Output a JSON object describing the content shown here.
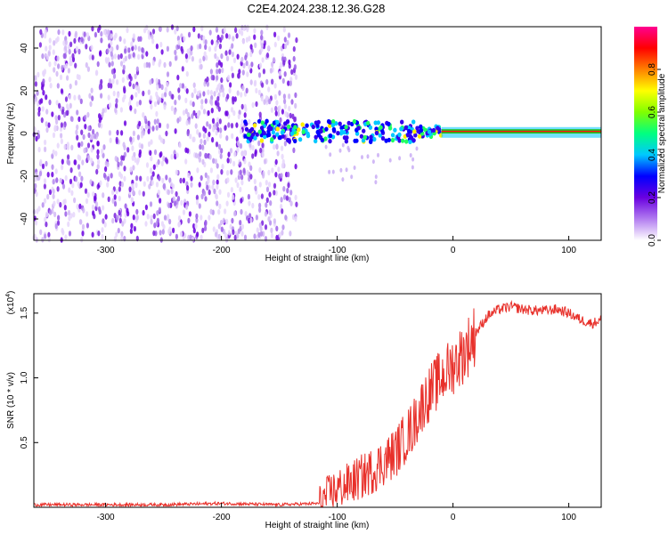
{
  "title": "C2E4.2024.238.12.36.G28",
  "chart_data": [
    {
      "type": "heatmap",
      "xlabel": "Height of straight line (km)",
      "ylabel": "Frequency (Hz)",
      "xlim": [
        -362,
        128
      ],
      "ylim": [
        -50,
        50
      ],
      "x_ticks": [
        -300,
        -200,
        -100,
        0,
        100
      ],
      "y_ticks": [
        -40,
        -20,
        0,
        20,
        40
      ],
      "colorbar": {
        "label": "Normalized spectral amplitude",
        "ticks": [
          0.0,
          0.2,
          0.4,
          0.6,
          0.8
        ],
        "tick_labels": [
          "0.0",
          "0.2",
          "0.4",
          "0.6",
          "0.8"
        ],
        "range": [
          0,
          1
        ],
        "colormap": [
          "#ffffff",
          "#b27cf0",
          "#6a00e0",
          "#0000ff",
          "#00c8ff",
          "#00ff80",
          "#80ff00",
          "#ffff00",
          "#ff8000",
          "#ff0000",
          "#ff0090"
        ]
      },
      "regions": [
        {
          "desc": "noise",
          "x_range": [
            -362,
            -135
          ],
          "freq_range": [
            -50,
            50
          ],
          "amplitude": [
            0.05,
            0.2
          ]
        },
        {
          "desc": "signal band",
          "x_range": [
            -180,
            128
          ],
          "center_freq": 1,
          "amplitude": [
            0.3,
            1.0
          ]
        }
      ]
    },
    {
      "type": "line",
      "xlabel": "Height of straight line (km)",
      "ylabel": "SNR (10 * v/v)",
      "y_scale_label": "(x10⁴)",
      "y_scale_base": "(x10",
      "y_scale_exp": "4",
      "y_scale_close": ")",
      "xlim": [
        -362,
        128
      ],
      "ylim": [
        0,
        1.65
      ],
      "x_ticks": [
        -300,
        -200,
        -100,
        0,
        100
      ],
      "y_ticks": [
        0.5,
        1.0,
        1.5
      ],
      "y_tick_labels": [
        "0.5",
        "1.0",
        "1.5"
      ],
      "color": "#e8302a",
      "series": [
        {
          "x": [
            -362,
            -300,
            -250,
            -200,
            -150,
            -115,
            -105,
            -90,
            -70,
            -50,
            -35,
            -25,
            -15,
            -5,
            0,
            10,
            20,
            30,
            40,
            50,
            60,
            70,
            80,
            90,
            100,
            110,
            120,
            128
          ],
          "y": [
            0.02,
            0.02,
            0.02,
            0.03,
            0.02,
            0.03,
            0.12,
            0.18,
            0.28,
            0.42,
            0.62,
            0.82,
            0.95,
            1.05,
            1.1,
            1.2,
            1.35,
            1.48,
            1.53,
            1.55,
            1.53,
            1.52,
            1.52,
            1.53,
            1.5,
            1.45,
            1.42,
            1.45
          ]
        }
      ]
    }
  ],
  "x_tick_labels": [
    "-300",
    "-200",
    "-100",
    "0",
    "100"
  ],
  "freq_tick_labels": [
    "-40",
    "-20",
    "0",
    "20",
    "40"
  ]
}
